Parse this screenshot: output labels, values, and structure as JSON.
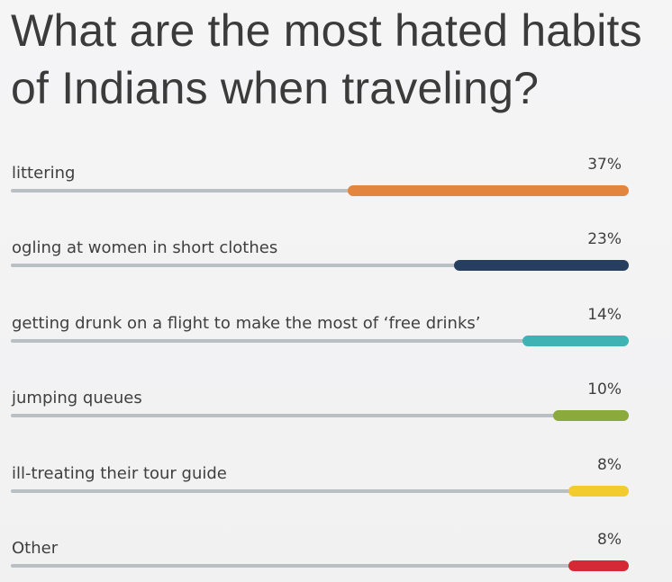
{
  "chart_data": {
    "type": "bar",
    "title": "What are the most hated habits of Indians when traveling?",
    "categories": [
      "littering",
      "ogling at women in short clothes",
      "getting drunk on  a flight to make the most of ‘free drinks’",
      "jumping queues",
      "ill-treating their tour guide",
      "Other"
    ],
    "values": [
      37,
      23,
      14,
      10,
      8,
      8
    ],
    "value_labels": [
      "37%",
      "23%",
      "14%",
      "10%",
      "8%",
      "8%"
    ],
    "colors": [
      "#e2863f",
      "#263f5f",
      "#3fb3b4",
      "#8aaa3c",
      "#f2cb2f",
      "#d52a35"
    ],
    "xlim": [
      0,
      100
    ],
    "orientation": "horizontal",
    "grid": false
  }
}
